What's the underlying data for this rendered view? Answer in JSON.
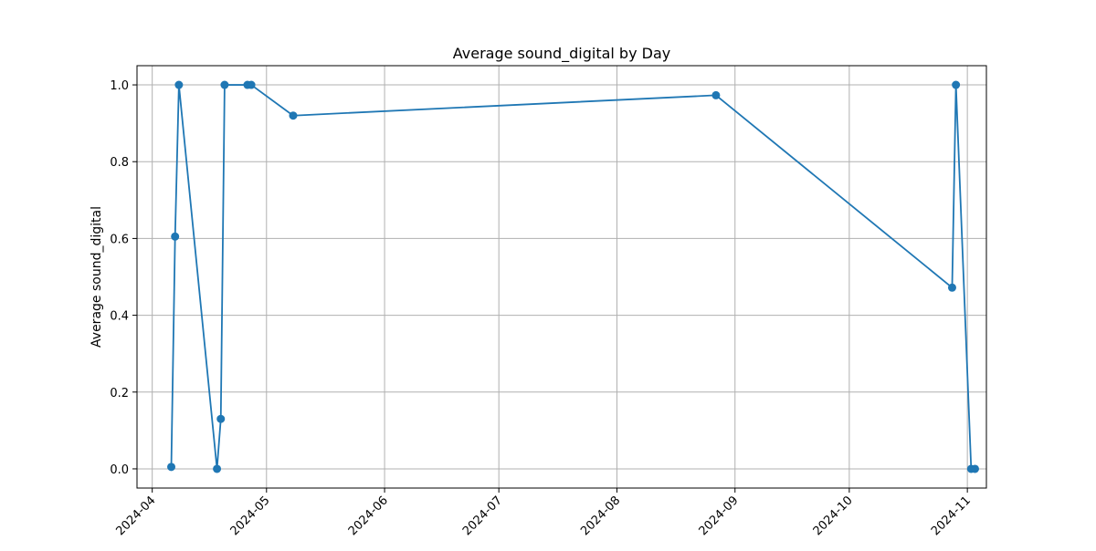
{
  "chart_data": {
    "type": "line",
    "title": "Average sound_digital by Day",
    "xlabel": "",
    "ylabel": "Average sound_digital",
    "xlim": [
      "2024-03-28",
      "2024-11-06"
    ],
    "ylim": [
      -0.05,
      1.05
    ],
    "grid": true,
    "x_ticks": [
      "2024-04",
      "2024-05",
      "2024-06",
      "2024-07",
      "2024-08",
      "2024-09",
      "2024-10",
      "2024-11"
    ],
    "y_ticks": [
      "0.0",
      "0.2",
      "0.4",
      "0.6",
      "0.8",
      "1.0"
    ],
    "series": [
      {
        "color": "#1f77b4",
        "marker": "circle",
        "points": [
          {
            "x": "2024-04-06",
            "y": 0.005
          },
          {
            "x": "2024-04-07",
            "y": 0.605
          },
          {
            "x": "2024-04-08",
            "y": 1.0
          },
          {
            "x": "2024-04-18",
            "y": 0.0
          },
          {
            "x": "2024-04-19",
            "y": 0.13
          },
          {
            "x": "2024-04-20",
            "y": 1.0
          },
          {
            "x": "2024-04-26",
            "y": 1.0
          },
          {
            "x": "2024-04-27",
            "y": 1.0
          },
          {
            "x": "2024-05-08",
            "y": 0.92
          },
          {
            "x": "2024-08-27",
            "y": 0.973
          },
          {
            "x": "2024-10-28",
            "y": 0.472
          },
          {
            "x": "2024-10-29",
            "y": 1.0
          },
          {
            "x": "2024-11-02",
            "y": 0.0
          },
          {
            "x": "2024-11-03",
            "y": 0.0
          }
        ]
      }
    ]
  }
}
